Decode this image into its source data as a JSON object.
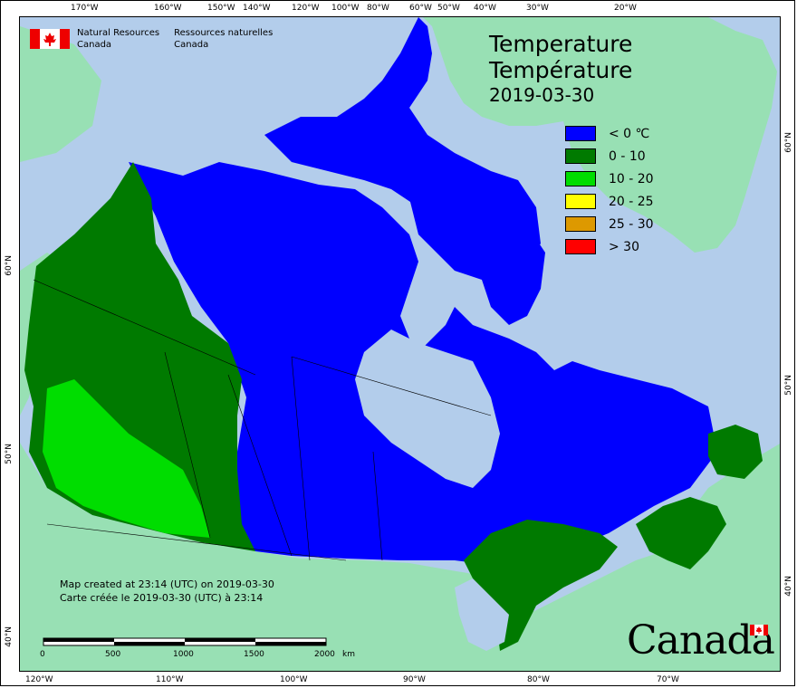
{
  "header": {
    "org_en_1": "Natural Resources",
    "org_en_2": "Canada",
    "org_fr_1": "Ressources naturelles",
    "org_fr_2": "Canada"
  },
  "title": {
    "line1": "Temperature",
    "line2": "Température",
    "date": "2019-03-30"
  },
  "legend": [
    {
      "label": "< 0 ℃",
      "color": "#0000ff"
    },
    {
      "label": "0 - 10",
      "color": "#007a00"
    },
    {
      "label": "10 - 20",
      "color": "#00dd00"
    },
    {
      "label": "20 - 25",
      "color": "#ffff00"
    },
    {
      "label": "25 - 30",
      "color": "#dd9900"
    },
    {
      "label": "> 30",
      "color": "#ff0000"
    }
  ],
  "ticks": {
    "top": [
      "170°W",
      "160°W",
      "150°W",
      "140°W",
      "120°W",
      "100°W",
      "80°W",
      "60°W",
      "50°W",
      "40°W",
      "30°W",
      "20°W"
    ],
    "bottom": [
      "120°W",
      "110°W",
      "100°W",
      "90°W",
      "80°W",
      "70°W"
    ],
    "left": [
      "60°N",
      "50°N",
      "40°N"
    ],
    "right": [
      "60°N",
      "50°N",
      "40°N"
    ]
  },
  "created": {
    "en": "Map created at 23:14 (UTC) on 2019-03-30",
    "fr": "Carte créée le 2019-03-30 (UTC) à 23:14"
  },
  "scale": {
    "labels": [
      "0",
      "500",
      "1000",
      "1500",
      "2000"
    ],
    "unit": "km"
  },
  "wordmark": "Canada",
  "colors": {
    "water": "#b3cdeb",
    "land_other": "#98e0b4",
    "cold": "#0000ff",
    "zero_ten": "#007a00",
    "ten_twenty": "#00dd00"
  }
}
